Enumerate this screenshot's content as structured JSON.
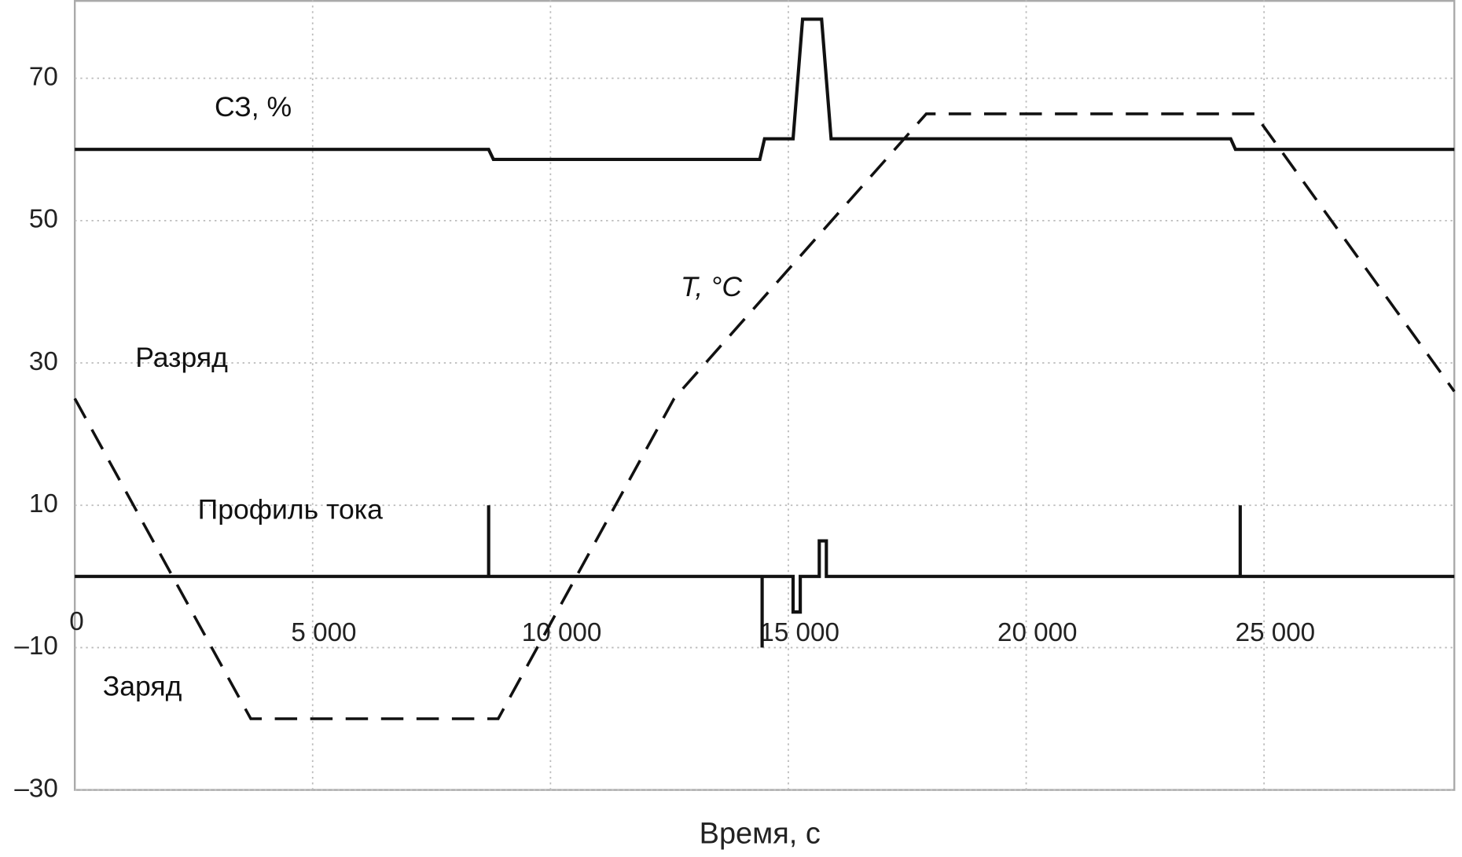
{
  "chart_data": {
    "type": "line",
    "xlabel": "Время, с",
    "xlim": [
      0,
      29000
    ],
    "ylim": [
      -30,
      81
    ],
    "xticks": [
      0,
      {
        "value": 5000,
        "label": "5 000"
      },
      {
        "value": 10000,
        "label": "10 000"
      },
      {
        "value": 15000,
        "label": "15 000"
      },
      {
        "value": 20000,
        "label": "20 000"
      },
      {
        "value": 25000,
        "label": "25 000"
      }
    ],
    "yticks": [
      70,
      50,
      30,
      10,
      {
        "value": -10,
        "label": "–10"
      },
      {
        "value": -30,
        "label": "–30"
      }
    ],
    "grid": true,
    "annotations": [
      "СЗ, %",
      "T, °C",
      "Разряд",
      "Профиль тока",
      "Заряд"
    ],
    "series": [
      {
        "color": "#111111",
        "dash": false,
        "x": [
          0,
          8700,
          8800,
          14400,
          14500,
          15100,
          15300,
          15700,
          15900,
          24300,
          24400,
          29000
        ],
        "values": [
          60,
          60,
          58.6,
          58.6,
          61.5,
          61.5,
          78.3,
          78.3,
          61.5,
          61.5,
          60,
          60
        ]
      },
      {
        "color": "#111111",
        "dash": true,
        "x": [
          0,
          3700,
          8900,
          12600,
          17900,
          24800,
          29000
        ],
        "values": [
          25,
          -20,
          -20,
          25,
          65,
          65,
          26
        ]
      },
      {
        "color": "#111111",
        "dash": false,
        "x": [
          0,
          8700,
          8700,
          8700,
          14450,
          14450,
          14450,
          15100,
          15100,
          15250,
          15250,
          15650,
          15650,
          15800,
          15800,
          24500,
          24500,
          24500,
          29000
        ],
        "values": [
          0,
          0,
          10,
          0,
          0,
          -10,
          0,
          0,
          -5,
          -5,
          0,
          0,
          5,
          5,
          0,
          0,
          10,
          0,
          0
        ]
      }
    ]
  }
}
